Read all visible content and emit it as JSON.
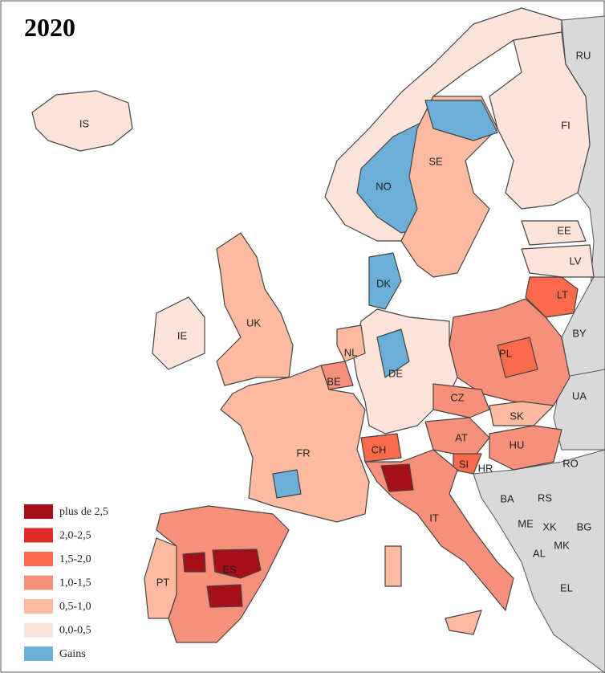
{
  "title": "2020",
  "country_labels": [
    "RU",
    "IS",
    "FI",
    "SE",
    "NO",
    "EE",
    "LV",
    "LT",
    "DK",
    "BY",
    "UK",
    "IE",
    "NL",
    "PL",
    "BE",
    "DE",
    "UA",
    "CZ",
    "SK",
    "AT",
    "FR",
    "CH",
    "HU",
    "SI",
    "RO",
    "HR",
    "BA",
    "RS",
    "IT",
    "ME",
    "XK",
    "BG",
    "MK",
    "AL",
    "ES",
    "PT",
    "EL"
  ],
  "legend": {
    "items": [
      {
        "label": "plus de 2,5",
        "color": "#a50f15"
      },
      {
        "label": "2,0-2,5",
        "color": "#de2d26"
      },
      {
        "label": "1,5-2,0",
        "color": "#fb6a4a"
      },
      {
        "label": "1,0-1,5",
        "color": "#f7907a"
      },
      {
        "label": "0,5-1,0",
        "color": "#fcbba1"
      },
      {
        "label": "0,0-0,5",
        "color": "#fde3d8"
      },
      {
        "label": "Gains",
        "color": "#6baed6"
      }
    ]
  }
}
